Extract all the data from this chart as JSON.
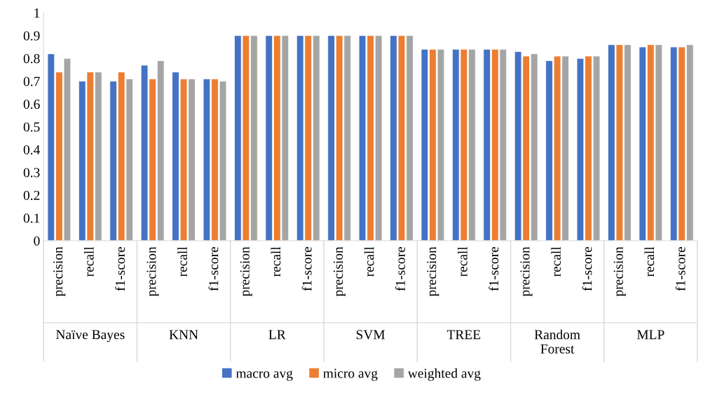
{
  "chart_data": {
    "type": "bar",
    "categories": [
      "precision",
      "recall",
      "f1-score",
      "precision",
      "recall",
      "f1-score",
      "precision",
      "recall",
      "f1-score",
      "precision",
      "recall",
      "f1-score",
      "precision",
      "recall",
      "f1-score",
      "precision",
      "recall",
      "f1-score",
      "precision",
      "recall",
      "f1-score"
    ],
    "annotations": [
      "Naïve Bayes",
      "KNN",
      "LR",
      "SVM",
      "TREE",
      "Random\nForest",
      "MLP"
    ],
    "series": [
      {
        "name": "macro avg",
        "color": "#4472c4",
        "values": [
          0.82,
          0.7,
          0.7,
          0.77,
          0.74,
          0.71,
          0.9,
          0.9,
          0.9,
          0.9,
          0.9,
          0.9,
          0.84,
          0.84,
          0.84,
          0.83,
          0.79,
          0.8,
          0.86,
          0.85,
          0.85
        ]
      },
      {
        "name": "micro avg",
        "color": "#ed7d31",
        "values": [
          0.74,
          0.74,
          0.74,
          0.71,
          0.71,
          0.71,
          0.9,
          0.9,
          0.9,
          0.9,
          0.9,
          0.9,
          0.84,
          0.84,
          0.84,
          0.81,
          0.81,
          0.81,
          0.86,
          0.86,
          0.85
        ]
      },
      {
        "name": "weighted avg",
        "color": "#a5a5a5",
        "values": [
          0.8,
          0.74,
          0.71,
          0.79,
          0.71,
          0.7,
          0.9,
          0.9,
          0.9,
          0.9,
          0.9,
          0.9,
          0.84,
          0.84,
          0.84,
          0.82,
          0.81,
          0.81,
          0.86,
          0.86,
          0.86
        ]
      }
    ],
    "ylim": [
      0,
      1
    ],
    "yticks": [
      0,
      {
        "value": 0.1,
        "label": "0.1"
      },
      {
        "value": 0.2,
        "label": "0.2"
      },
      {
        "value": 0.3,
        "label": "0.3"
      },
      {
        "value": 0.4,
        "label": "0.4"
      },
      {
        "value": 0.5,
        "label": "0.5"
      },
      {
        "value": 0.6,
        "label": "0.6"
      },
      {
        "value": 0.7,
        "label": "0.7"
      },
      {
        "value": 0.8,
        "label": "0.8"
      },
      {
        "value": 0.9,
        "label": "0.9"
      },
      1
    ],
    "grid": false,
    "legend": "bottom"
  }
}
